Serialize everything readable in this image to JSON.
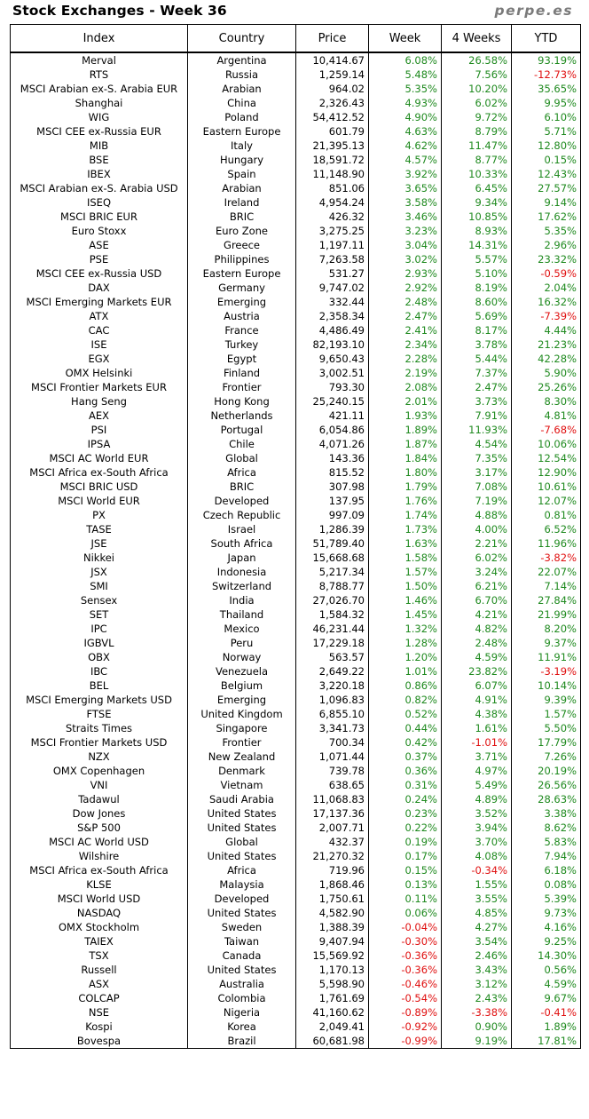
{
  "page": {
    "title": "Stock Exchanges - Week 36",
    "brand": "perpe.es"
  },
  "colors": {
    "positive": "#1f8a1f",
    "negative": "#e01010"
  },
  "table": {
    "headers": [
      "Index",
      "Country",
      "Price",
      "Week",
      "4 Weeks",
      "YTD"
    ],
    "rows": [
      [
        "Merval",
        "Argentina",
        "10,414.67",
        "6.08%",
        "26.58%",
        "93.19%"
      ],
      [
        "RTS",
        "Russia",
        "1,259.14",
        "5.48%",
        "7.56%",
        "-12.73%"
      ],
      [
        "MSCI Arabian ex-S. Arabia EUR",
        "Arabian",
        "964.02",
        "5.35%",
        "10.20%",
        "35.65%"
      ],
      [
        "Shanghai",
        "China",
        "2,326.43",
        "4.93%",
        "6.02%",
        "9.95%"
      ],
      [
        "WIG",
        "Poland",
        "54,412.52",
        "4.90%",
        "9.72%",
        "6.10%"
      ],
      [
        "MSCI CEE ex-Russia EUR",
        "Eastern Europe",
        "601.79",
        "4.63%",
        "8.79%",
        "5.71%"
      ],
      [
        "MIB",
        "Italy",
        "21,395.13",
        "4.62%",
        "11.47%",
        "12.80%"
      ],
      [
        "BSE",
        "Hungary",
        "18,591.72",
        "4.57%",
        "8.77%",
        "0.15%"
      ],
      [
        "IBEX",
        "Spain",
        "11,148.90",
        "3.92%",
        "10.33%",
        "12.43%"
      ],
      [
        "MSCI Arabian ex-S. Arabia USD",
        "Arabian",
        "851.06",
        "3.65%",
        "6.45%",
        "27.57%"
      ],
      [
        "ISEQ",
        "Ireland",
        "4,954.24",
        "3.58%",
        "9.34%",
        "9.14%"
      ],
      [
        "MSCI BRIC EUR",
        "BRIC",
        "426.32",
        "3.46%",
        "10.85%",
        "17.62%"
      ],
      [
        "Euro Stoxx",
        "Euro Zone",
        "3,275.25",
        "3.23%",
        "8.93%",
        "5.35%"
      ],
      [
        "ASE",
        "Greece",
        "1,197.11",
        "3.04%",
        "14.31%",
        "2.96%"
      ],
      [
        "PSE",
        "Philippines",
        "7,263.58",
        "3.02%",
        "5.57%",
        "23.32%"
      ],
      [
        "MSCI CEE ex-Russia USD",
        "Eastern Europe",
        "531.27",
        "2.93%",
        "5.10%",
        "-0.59%"
      ],
      [
        "DAX",
        "Germany",
        "9,747.02",
        "2.92%",
        "8.19%",
        "2.04%"
      ],
      [
        "MSCI Emerging Markets EUR",
        "Emerging",
        "332.44",
        "2.48%",
        "8.60%",
        "16.32%"
      ],
      [
        "ATX",
        "Austria",
        "2,358.34",
        "2.47%",
        "5.69%",
        "-7.39%"
      ],
      [
        "CAC",
        "France",
        "4,486.49",
        "2.41%",
        "8.17%",
        "4.44%"
      ],
      [
        "ISE",
        "Turkey",
        "82,193.10",
        "2.34%",
        "3.78%",
        "21.23%"
      ],
      [
        "EGX",
        "Egypt",
        "9,650.43",
        "2.28%",
        "5.44%",
        "42.28%"
      ],
      [
        "OMX Helsinki",
        "Finland",
        "3,002.51",
        "2.19%",
        "7.37%",
        "5.90%"
      ],
      [
        "MSCI Frontier Markets EUR",
        "Frontier",
        "793.30",
        "2.08%",
        "2.47%",
        "25.26%"
      ],
      [
        "Hang Seng",
        "Hong Kong",
        "25,240.15",
        "2.01%",
        "3.73%",
        "8.30%"
      ],
      [
        "AEX",
        "Netherlands",
        "421.11",
        "1.93%",
        "7.91%",
        "4.81%"
      ],
      [
        "PSI",
        "Portugal",
        "6,054.86",
        "1.89%",
        "11.93%",
        "-7.68%"
      ],
      [
        "IPSA",
        "Chile",
        "4,071.26",
        "1.87%",
        "4.54%",
        "10.06%"
      ],
      [
        "MSCI AC World EUR",
        "Global",
        "143.36",
        "1.84%",
        "7.35%",
        "12.54%"
      ],
      [
        "MSCI Africa ex-South Africa",
        "Africa",
        "815.52",
        "1.80%",
        "3.17%",
        "12.90%"
      ],
      [
        "MSCI BRIC USD",
        "BRIC",
        "307.98",
        "1.79%",
        "7.08%",
        "10.61%"
      ],
      [
        "MSCI World EUR",
        "Developed",
        "137.95",
        "1.76%",
        "7.19%",
        "12.07%"
      ],
      [
        "PX",
        "Czech Republic",
        "997.09",
        "1.74%",
        "4.88%",
        "0.81%"
      ],
      [
        "TASE",
        "Israel",
        "1,286.39",
        "1.73%",
        "4.00%",
        "6.52%"
      ],
      [
        "JSE",
        "South Africa",
        "51,789.40",
        "1.63%",
        "2.21%",
        "11.96%"
      ],
      [
        "Nikkei",
        "Japan",
        "15,668.68",
        "1.58%",
        "6.02%",
        "-3.82%"
      ],
      [
        "JSX",
        "Indonesia",
        "5,217.34",
        "1.57%",
        "3.24%",
        "22.07%"
      ],
      [
        "SMI",
        "Switzerland",
        "8,788.77",
        "1.50%",
        "6.21%",
        "7.14%"
      ],
      [
        "Sensex",
        "India",
        "27,026.70",
        "1.46%",
        "6.70%",
        "27.84%"
      ],
      [
        "SET",
        "Thailand",
        "1,584.32",
        "1.45%",
        "4.21%",
        "21.99%"
      ],
      [
        "IPC",
        "Mexico",
        "46,231.44",
        "1.32%",
        "4.82%",
        "8.20%"
      ],
      [
        "IGBVL",
        "Peru",
        "17,229.18",
        "1.28%",
        "2.48%",
        "9.37%"
      ],
      [
        "OBX",
        "Norway",
        "563.57",
        "1.20%",
        "4.59%",
        "11.91%"
      ],
      [
        "IBC",
        "Venezuela",
        "2,649.22",
        "1.01%",
        "23.82%",
        "-3.19%"
      ],
      [
        "BEL",
        "Belgium",
        "3,220.18",
        "0.86%",
        "6.07%",
        "10.14%"
      ],
      [
        "MSCI Emerging Markets USD",
        "Emerging",
        "1,096.83",
        "0.82%",
        "4.91%",
        "9.39%"
      ],
      [
        "FTSE",
        "United Kingdom",
        "6,855.10",
        "0.52%",
        "4.38%",
        "1.57%"
      ],
      [
        "Straits Times",
        "Singapore",
        "3,341.73",
        "0.44%",
        "1.61%",
        "5.50%"
      ],
      [
        "MSCI Frontier Markets USD",
        "Frontier",
        "700.34",
        "0.42%",
        "-1.01%",
        "17.79%"
      ],
      [
        "NZX",
        "New Zealand",
        "1,071.44",
        "0.37%",
        "3.71%",
        "7.26%"
      ],
      [
        "OMX Copenhagen",
        "Denmark",
        "739.78",
        "0.36%",
        "4.97%",
        "20.19%"
      ],
      [
        "VNI",
        "Vietnam",
        "638.65",
        "0.31%",
        "5.49%",
        "26.56%"
      ],
      [
        "Tadawul",
        "Saudi Arabia",
        "11,068.83",
        "0.24%",
        "4.89%",
        "28.63%"
      ],
      [
        "Dow Jones",
        "United States",
        "17,137.36",
        "0.23%",
        "3.52%",
        "3.38%"
      ],
      [
        "S&P 500",
        "United States",
        "2,007.71",
        "0.22%",
        "3.94%",
        "8.62%"
      ],
      [
        "MSCI AC World USD",
        "Global",
        "432.37",
        "0.19%",
        "3.70%",
        "5.83%"
      ],
      [
        "Wilshire",
        "United States",
        "21,270.32",
        "0.17%",
        "4.08%",
        "7.94%"
      ],
      [
        "MSCI Africa ex-South Africa",
        "Africa",
        "719.96",
        "0.15%",
        "-0.34%",
        "6.18%"
      ],
      [
        "KLSE",
        "Malaysia",
        "1,868.46",
        "0.13%",
        "1.55%",
        "0.08%"
      ],
      [
        "MSCI World USD",
        "Developed",
        "1,750.61",
        "0.11%",
        "3.55%",
        "5.39%"
      ],
      [
        "NASDAQ",
        "United States",
        "4,582.90",
        "0.06%",
        "4.85%",
        "9.73%"
      ],
      [
        "OMX Stockholm",
        "Sweden",
        "1,388.39",
        "-0.04%",
        "4.27%",
        "4.16%"
      ],
      [
        "TAIEX",
        "Taiwan",
        "9,407.94",
        "-0.30%",
        "3.54%",
        "9.25%"
      ],
      [
        "TSX",
        "Canada",
        "15,569.92",
        "-0.36%",
        "2.46%",
        "14.30%"
      ],
      [
        "Russell",
        "United States",
        "1,170.13",
        "-0.36%",
        "3.43%",
        "0.56%"
      ],
      [
        "ASX",
        "Australia",
        "5,598.90",
        "-0.46%",
        "3.12%",
        "4.59%"
      ],
      [
        "COLCAP",
        "Colombia",
        "1,761.69",
        "-0.54%",
        "2.43%",
        "9.67%"
      ],
      [
        "NSE",
        "Nigeria",
        "41,160.62",
        "-0.89%",
        "-3.38%",
        "-0.41%"
      ],
      [
        "Kospi",
        "Korea",
        "2,049.41",
        "-0.92%",
        "0.90%",
        "1.89%"
      ],
      [
        "Bovespa",
        "Brazil",
        "60,681.98",
        "-0.99%",
        "9.19%",
        "17.81%"
      ]
    ]
  }
}
